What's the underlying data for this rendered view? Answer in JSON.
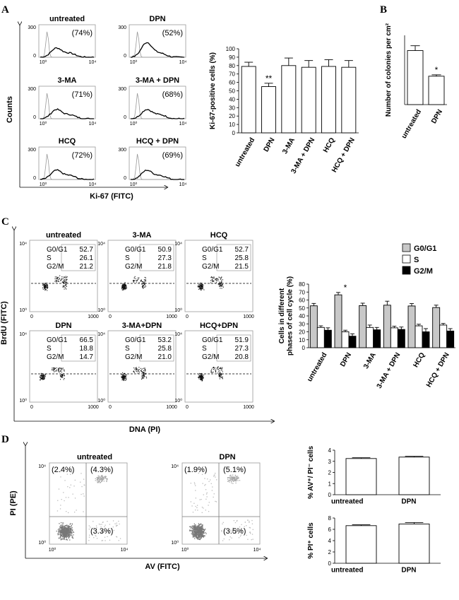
{
  "panel_labels": [
    "A",
    "B",
    "C",
    "D"
  ],
  "panel_a": {
    "histograms": [
      {
        "title": "untreated",
        "percent": "(74%)"
      },
      {
        "title": "DPN",
        "percent": "(52%)"
      },
      {
        "title": "3-MA",
        "percent": "(71%)"
      },
      {
        "title": "3-MA + DPN",
        "percent": "(68%)"
      },
      {
        "title": "HCQ",
        "percent": "(72%)"
      },
      {
        "title": "HCQ + DPN",
        "percent": "(69%)"
      }
    ],
    "y_ticks": [
      "0",
      "300"
    ],
    "x_ticks": [
      "10⁰",
      "10⁴"
    ],
    "ylabel": "Counts",
    "xlabel": "Ki-67 (FITC)"
  },
  "chart_data": [
    {
      "id": "ki67_bar",
      "type": "bar",
      "categories": [
        "untreated",
        "DPN",
        "3-MA",
        "3-MA + DPN",
        "HCQ",
        "HCQ + DPN"
      ],
      "values": [
        79,
        55,
        80,
        78,
        79,
        78
      ],
      "errors": [
        5,
        4,
        9,
        8,
        8,
        8
      ],
      "significance": [
        "",
        "**",
        "",
        "",
        "",
        ""
      ],
      "ylabel": "Ki-67-positive cells (%)",
      "ylim": [
        0,
        100
      ],
      "yticks": [
        0,
        10,
        20,
        30,
        40,
        50,
        60,
        70,
        80,
        90,
        100
      ]
    },
    {
      "id": "colonies_bar",
      "type": "bar",
      "categories": [
        "untreated",
        "DPN"
      ],
      "values": [
        78,
        41
      ],
      "errors": [
        7,
        2
      ],
      "significance": [
        "",
        "*"
      ],
      "ylabel": "Number of colonies per cm²",
      "ylim": [
        0,
        100
      ],
      "yticks": []
    },
    {
      "id": "cell_cycle_bar",
      "type": "bar",
      "categories": [
        "untreated",
        "DPN",
        "3-MA",
        "3-MA + DPN",
        "HCQ",
        "HCQ + DPN"
      ],
      "series": [
        {
          "name": "G0/G1",
          "values": [
            52.7,
            66.5,
            53,
            53.5,
            52.5,
            50.5
          ],
          "errors": [
            3,
            3,
            3,
            5,
            3,
            3
          ],
          "color": "#c8c8c8"
        },
        {
          "name": "S",
          "values": [
            25.5,
            20,
            25.5,
            25,
            27.5,
            28.5
          ],
          "errors": [
            2,
            2,
            3,
            2,
            2,
            2
          ],
          "color": "#ffffff"
        },
        {
          "name": "G2/M",
          "values": [
            22,
            14.5,
            22.5,
            23,
            20,
            21
          ],
          "errors": [
            3,
            3,
            3,
            3,
            4,
            3
          ],
          "color": "#000000"
        }
      ],
      "significance": [
        "",
        "*",
        "",
        "",
        "",
        ""
      ],
      "ylabel": "Cells in different phases of cell cycle (%)",
      "ylim": [
        0,
        80
      ],
      "yticks": [
        0,
        10,
        20,
        30,
        40,
        50,
        60,
        70,
        80
      ],
      "legend": "top-right"
    },
    {
      "id": "av_pi_bar",
      "type": "bar",
      "categories": [
        "untreated",
        "DPN"
      ],
      "values": [
        3.25,
        3.38
      ],
      "errors": [
        0.07,
        0.07
      ],
      "ylabel": "% AV⁺/ PI⁻ cells",
      "ylim": [
        0,
        4
      ],
      "yticks": [
        0,
        1,
        2,
        3,
        4
      ]
    },
    {
      "id": "pi_bar",
      "type": "bar",
      "categories": [
        "untreated",
        "DPN"
      ],
      "values": [
        6.65,
        6.95
      ],
      "errors": [
        0.15,
        0.25
      ],
      "ylabel": "% PI⁺ cells",
      "ylim": [
        0,
        8
      ],
      "yticks": [
        0,
        2,
        4,
        6,
        8
      ]
    }
  ],
  "panel_c": {
    "plots": [
      {
        "title": "untreated",
        "g0g1": "52.7",
        "s": "26.1",
        "g2m": "21.2"
      },
      {
        "title": "3-MA",
        "g0g1": "50.9",
        "s": "27.3",
        "g2m": "21.8"
      },
      {
        "title": "HCQ",
        "g0g1": "52.7",
        "s": "25.8",
        "g2m": "21.5"
      },
      {
        "title": "DPN",
        "g0g1": "66.5",
        "s": "18.8",
        "g2m": "14.7"
      },
      {
        "title": "3-MA+DPN",
        "g0g1": "53.2",
        "s": "25.8",
        "g2m": "21.0"
      },
      {
        "title": "HCQ+DPN",
        "g0g1": "51.9",
        "s": "27.3",
        "g2m": "20.8"
      }
    ],
    "phase_labels": [
      "G0/G1",
      "S",
      "G2/M"
    ],
    "y_ticks": [
      "10⁰",
      "10⁴"
    ],
    "x_ticks": [
      "0",
      "1000"
    ],
    "ylabel": "BrdU (FITC)",
    "xlabel": "DNA (PI)"
  },
  "panel_d": {
    "plots": [
      {
        "title": "untreated",
        "ul": "(2.4%)",
        "ur": "(4.3%)",
        "lr": "(3.3%)"
      },
      {
        "title": "DPN",
        "ul": "(1.9%)",
        "ur": "(5.1%)",
        "lr": "(3.5%)"
      }
    ],
    "y_ticks": [
      "10⁰",
      "10⁴"
    ],
    "x_ticks": [
      "10⁰",
      "10⁴"
    ],
    "ylabel": "PI (PE)",
    "xlabel": "AV (FITC)"
  }
}
